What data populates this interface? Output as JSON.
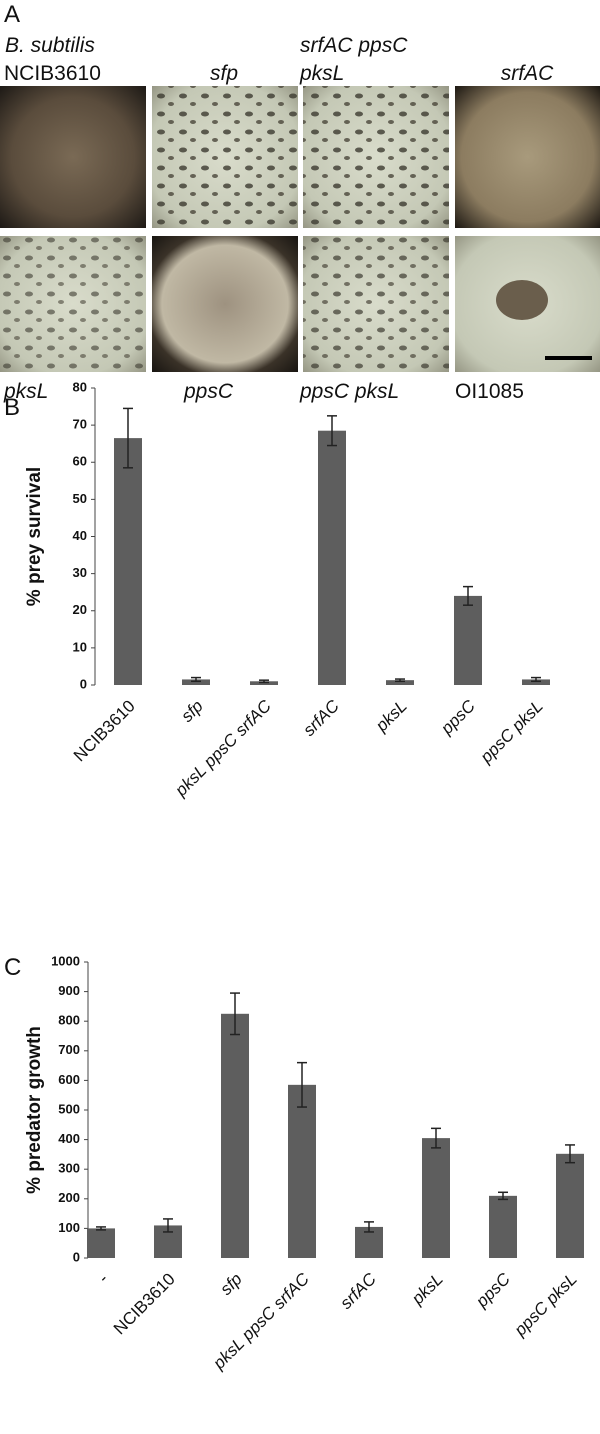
{
  "panel_a": {
    "letter": "A",
    "top_labels": [
      "B. subtilis",
      "NCIB3610",
      "sfp",
      "srfAC ppsC",
      "pksL",
      "srfAC"
    ],
    "bottom_labels": [
      "pksL",
      "ppsC",
      "ppsC pksL",
      "OI1085"
    ]
  },
  "chart_data": [
    {
      "type": "bar",
      "letter": "B",
      "ylabel": "% prey survival",
      "categories": [
        "NCIB3610",
        "sfp",
        "pksL ppsC srfAC",
        "srfAC",
        "pksL",
        "ppsC",
        "ppsC pksL"
      ],
      "values": [
        66.5,
        1.5,
        1,
        68.5,
        1.3,
        24,
        1.5
      ],
      "errors": [
        8,
        0.5,
        0.3,
        4,
        0.3,
        2.5,
        0.5
      ],
      "color": "#5e5e5e",
      "ylim": [
        0,
        80
      ],
      "yticks": [
        0,
        10,
        20,
        30,
        40,
        50,
        60,
        70,
        80
      ]
    },
    {
      "type": "bar",
      "letter": "C",
      "ylabel": "% predator growth",
      "categories": [
        "-",
        "NCIB3610",
        "sfp",
        "pksL ppsC srfAC",
        "srfAC",
        "pksL",
        "ppsC",
        "ppsC pksL"
      ],
      "values": [
        100,
        110,
        825,
        585,
        105,
        405,
        210,
        352
      ],
      "errors": [
        5,
        22,
        70,
        75,
        17,
        33,
        12,
        30
      ],
      "color": "#5e5e5e",
      "ylim": [
        0,
        1000
      ],
      "yticks": [
        0,
        100,
        200,
        300,
        400,
        500,
        600,
        700,
        800,
        900,
        1000
      ]
    }
  ]
}
